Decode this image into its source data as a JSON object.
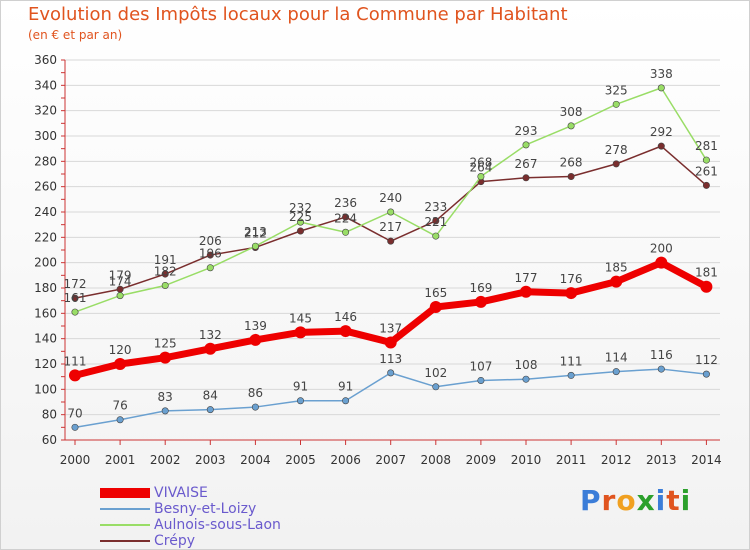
{
  "title": "Evolution des Impôts locaux pour la Commune par Habitant",
  "subtitle": "(en € et par an)",
  "logo": {
    "text": "Proxiti"
  },
  "colors": {
    "title": "#e0541f",
    "axis": "#cc3333",
    "grid": "#d8d8d8",
    "legend_text": "#6a5acd"
  },
  "chart_data": {
    "type": "line",
    "title": "Evolution des Impôts locaux pour la Commune par Habitant",
    "subtitle": "(en € et par an)",
    "categories": [
      "2000",
      "2001",
      "2002",
      "2003",
      "2004",
      "2005",
      "2006",
      "2007",
      "2008",
      "2009",
      "2010",
      "2011",
      "2012",
      "2013",
      "2014"
    ],
    "ylim": [
      60,
      360
    ],
    "yticks": [
      "60",
      "80",
      "100",
      "120",
      "140",
      "160",
      "180",
      "200",
      "220",
      "240",
      "260",
      "280",
      "300",
      "320",
      "340",
      "360"
    ],
    "grid": true,
    "legend_position": "bottom-left",
    "series": [
      {
        "name": "VIVAISE",
        "color": "#ee0000",
        "width": "thick",
        "values": [
          111,
          120,
          125,
          132,
          139,
          145,
          146,
          137,
          165,
          169,
          177,
          176,
          185,
          200,
          181
        ],
        "labels": [
          "111",
          "120",
          "125",
          "132",
          "139",
          "145",
          "146",
          "137",
          "165",
          "169",
          "177",
          "176",
          "185",
          "200",
          "181"
        ]
      },
      {
        "name": "Besny-et-Loizy",
        "color": "#6aa0d0",
        "width": "thin",
        "values": [
          70,
          76,
          83,
          84,
          86,
          91,
          91,
          113,
          102,
          107,
          108,
          111,
          114,
          116,
          112
        ],
        "labels": [
          "70",
          "76",
          "83",
          "84",
          "86",
          "91",
          "91",
          "113",
          "102",
          "107",
          "108",
          "111",
          "114",
          "116",
          "112"
        ]
      },
      {
        "name": "Aulnois-sous-Laon",
        "color": "#99dd66",
        "width": "thin",
        "values": [
          161,
          174,
          182,
          196,
          213,
          232,
          224,
          240,
          221,
          268,
          293,
          308,
          325,
          338,
          281
        ],
        "labels": [
          "161",
          "174",
          "182",
          "196",
          "213",
          "232",
          "224",
          "240",
          "221",
          "268",
          "293",
          "308",
          "325",
          "338",
          "281"
        ]
      },
      {
        "name": "Crépy",
        "color": "#7a2e2e",
        "width": "thin",
        "values": [
          172,
          179,
          191,
          206,
          212,
          225,
          236,
          217,
          233,
          264,
          267,
          268,
          278,
          292,
          261
        ],
        "labels": [
          "172",
          "179",
          "191",
          "206",
          "212",
          "225",
          "236",
          "217",
          "233",
          "264",
          "267",
          "268",
          "278",
          "292",
          "261"
        ]
      }
    ]
  }
}
